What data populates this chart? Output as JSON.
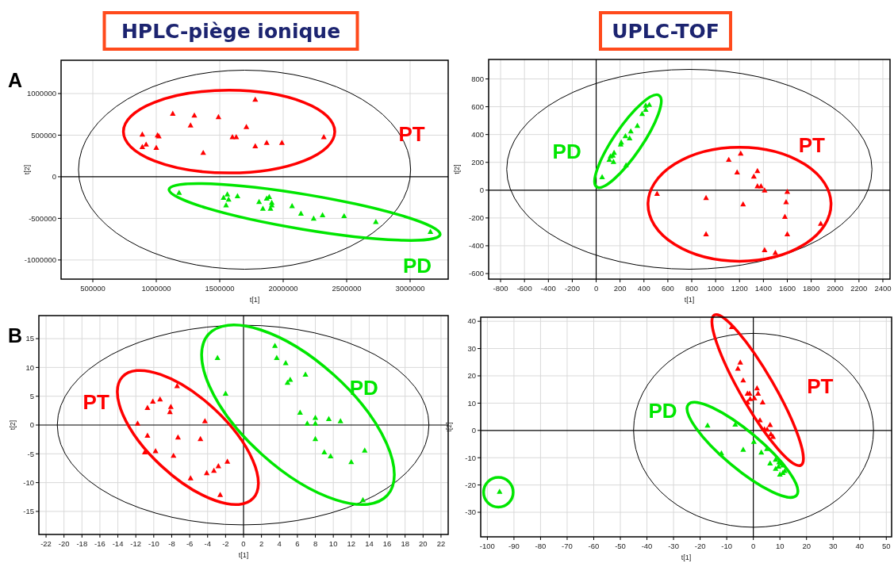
{
  "chart_data": [
    {
      "type": "scatter",
      "title": "HPLC-piège ionique",
      "xlabel": "t[1]",
      "ylabel": "t[2]",
      "xlim": [
        250000,
        3300000
      ],
      "ylim": [
        -1230000,
        1400000
      ],
      "xticks": [
        500000,
        1000000,
        1500000,
        2000000,
        2500000,
        3000000
      ],
      "yticks": [
        -1000000,
        -500000,
        0,
        500000,
        1000000
      ],
      "grid": true,
      "marker": "triangle",
      "ref_lines": [
        {
          "axis": "y",
          "value": 0,
          "color": "#000000"
        }
      ],
      "annotations": [
        "A",
        "PT",
        "PD"
      ],
      "series": [
        {
          "color": "#ff0000",
          "x": [
            890000,
            890000,
            920000,
            1000000,
            1010000,
            1020000,
            1130000,
            1270000,
            1300000,
            1370000,
            1490000,
            1600000,
            1630000,
            1710000,
            1780000,
            1780000,
            1870000,
            1990000,
            2320000
          ],
          "values": [
            510000,
            360000,
            390000,
            350000,
            500000,
            490000,
            760000,
            620000,
            740000,
            290000,
            720000,
            480000,
            480000,
            600000,
            930000,
            370000,
            410000,
            410000,
            480000
          ]
        },
        {
          "color": "#00e600",
          "x": [
            1180000,
            1530000,
            1560000,
            1570000,
            1550000,
            1640000,
            1810000,
            1840000,
            1870000,
            1890000,
            1900000,
            1910000,
            1910000,
            2070000,
            2140000,
            2240000,
            2310000,
            2480000,
            2730000,
            3160000
          ],
          "values": [
            -190000,
            -250000,
            -210000,
            -270000,
            -340000,
            -230000,
            -300000,
            -380000,
            -260000,
            -240000,
            -380000,
            -340000,
            -310000,
            -350000,
            -440000,
            -500000,
            -460000,
            -470000,
            -540000,
            -660000
          ]
        }
      ]
    },
    {
      "type": "scatter",
      "title": "UPLC-TOF",
      "xlabel": "t[1]",
      "ylabel": "t[2]",
      "xlim": [
        -900,
        2460
      ],
      "ylim": [
        -640,
        940
      ],
      "xticks": [
        -800,
        -600,
        -400,
        -200,
        0,
        200,
        400,
        600,
        800,
        1000,
        1200,
        1400,
        1600,
        1800,
        2000,
        2200,
        2400
      ],
      "yticks": [
        -600,
        -400,
        -200,
        0,
        200,
        400,
        600,
        800
      ],
      "grid": true,
      "marker": "triangle",
      "annotations": [
        "PT",
        "PD"
      ],
      "series": [
        {
          "color": "#ff0000",
          "x": [
            510,
            920,
            920,
            1110,
            1180,
            1210,
            1230,
            1320,
            1350,
            1350,
            1380,
            1410,
            1410,
            1500,
            1580,
            1590,
            1600,
            1600,
            1880
          ],
          "values": [
            -25,
            -55,
            -315,
            220,
            130,
            265,
            -100,
            100,
            140,
            30,
            30,
            0,
            -430,
            -450,
            -190,
            -85,
            -10,
            -315,
            -240
          ]
        },
        {
          "color": "#00e600",
          "x": [
            50,
            110,
            120,
            140,
            150,
            145,
            205,
            210,
            245,
            250,
            280,
            290,
            345,
            385,
            415,
            415,
            445
          ],
          "values": [
            95,
            220,
            245,
            250,
            270,
            205,
            330,
            345,
            390,
            180,
            375,
            425,
            465,
            550,
            580,
            610,
            615
          ]
        }
      ]
    },
    {
      "type": "scatter",
      "xlabel": "t[1]",
      "ylabel": "t[2]",
      "xlim": [
        -22.8,
        22.8
      ],
      "ylim": [
        -19,
        19
      ],
      "xticks": [
        -22,
        -20,
        -18,
        -16,
        -14,
        -12,
        -10,
        -8,
        -6,
        -4,
        -2,
        0,
        2,
        4,
        6,
        8,
        10,
        12,
        14,
        16,
        18,
        20,
        22
      ],
      "yticks": [
        -15,
        -10,
        -5,
        0,
        5,
        10,
        15
      ],
      "grid": true,
      "marker": "triangle",
      "annotations": [
        "B",
        "PT",
        "PD"
      ],
      "series": [
        {
          "color": "#ff0000",
          "x": [
            -11.8,
            -10.7,
            -10.7,
            -11,
            -10.1,
            -9.8,
            -9.3,
            -8.1,
            -8.2,
            -7.8,
            -7.4,
            -7.3,
            -5.9,
            -4.8,
            -4.3,
            -4.1,
            -3.3,
            -2.8,
            -2.6,
            -1.8
          ],
          "values": [
            0.3,
            3,
            -1.8,
            -4.7,
            4.1,
            -4.5,
            4.5,
            3.2,
            2.3,
            -5.3,
            6.8,
            -2.1,
            -9.2,
            -2.4,
            0.7,
            -8.3,
            -7.9,
            -7.1,
            -12.1,
            -6.3
          ]
        },
        {
          "color": "#00e600",
          "x": [
            -2.9,
            -2,
            3.5,
            3.7,
            4.7,
            4.9,
            5.2,
            6.9,
            6.3,
            7.1,
            8,
            8,
            8,
            9,
            9.5,
            9.7,
            10.8,
            12,
            13.5,
            13.3
          ],
          "values": [
            11.7,
            5.5,
            13.8,
            11.7,
            10.8,
            7.4,
            7.9,
            8.8,
            2.2,
            0.3,
            1.3,
            0.3,
            -2.4,
            -4.7,
            1.1,
            -5.4,
            0.7,
            -6.4,
            -4.4,
            -13
          ]
        }
      ]
    },
    {
      "type": "scatter",
      "xlabel": "t[1]",
      "ylabel": "t[2]",
      "xlim": [
        -102.5,
        52
      ],
      "ylim": [
        -39,
        41.5
      ],
      "xticks": [
        -100,
        -90,
        -80,
        -70,
        -60,
        -50,
        -40,
        -30,
        -20,
        -10,
        0,
        10,
        20,
        30,
        40,
        50
      ],
      "yticks": [
        -30,
        -20,
        -10,
        0,
        10,
        20,
        30,
        40
      ],
      "grid": true,
      "marker": "triangle",
      "annotations": [
        "PT",
        "PD"
      ],
      "series": [
        {
          "color": "#ff0000",
          "x": [
            -8.1,
            -4.9,
            -5.8,
            -3.8,
            -2.2,
            -1.4,
            -1.2,
            -2.2,
            0.4,
            1.4,
            1.8,
            3.5,
            2.5,
            4.2,
            5.2,
            6.3,
            6.6,
            7.4
          ],
          "values": [
            38,
            25,
            22.7,
            18.4,
            13.6,
            13.6,
            11.6,
            10.4,
            11.9,
            15.5,
            13.6,
            10.4,
            3.8,
            0.5,
            0.4,
            2.1,
            -1.3,
            -2.3
          ]
        },
        {
          "color": "#00e600",
          "x": [
            -95.4,
            -17.2,
            -6.8,
            -12,
            -3.8,
            0.2,
            3,
            5.1,
            8.4,
            6.3,
            9.7,
            10.6,
            9.5,
            8.4,
            11.1,
            11.8,
            11.1,
            10
          ],
          "values": [
            -22.4,
            1.9,
            2.2,
            -8.3,
            -7,
            -4.1,
            -8,
            -6.7,
            -10.6,
            -12,
            -11.6,
            -12,
            -13.2,
            -14,
            -12.7,
            -14.8,
            -15.5,
            -16.1
          ]
        }
      ]
    }
  ]
}
